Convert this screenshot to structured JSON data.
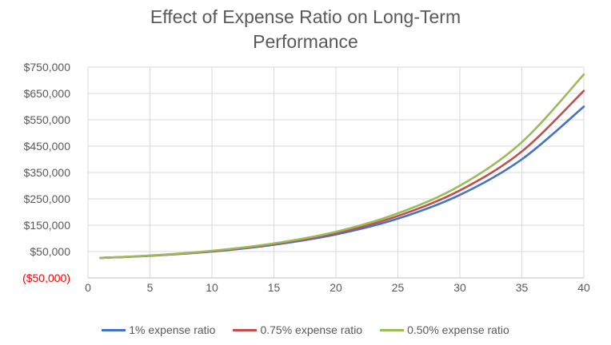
{
  "chart_data": {
    "type": "line",
    "title_lines": [
      "Effect of Expense Ratio on Long-Term",
      "Performance"
    ],
    "xlabel": "",
    "ylabel": "",
    "xlim": [
      0,
      40
    ],
    "ylim": [
      -50000,
      750000
    ],
    "x_ticks": [
      0,
      5,
      10,
      15,
      20,
      25,
      30,
      35,
      40
    ],
    "y_ticks": [
      {
        "value": -50000,
        "label": "($50,000)",
        "color": "#ff0000"
      },
      {
        "value": 50000,
        "label": "$50,000"
      },
      {
        "value": 150000,
        "label": "$150,000"
      },
      {
        "value": 250000,
        "label": "$250,000"
      },
      {
        "value": 350000,
        "label": "$350,000"
      },
      {
        "value": 450000,
        "label": "$450,000"
      },
      {
        "value": 550000,
        "label": "$550,000"
      },
      {
        "value": 650000,
        "label": "$650,000"
      },
      {
        "value": 750000,
        "label": "$750,000"
      }
    ],
    "grid": true,
    "legend_position": "bottom",
    "series": [
      {
        "name": "1% expense ratio",
        "color": "#4472c4",
        "x": [
          1,
          5,
          10,
          15,
          20,
          25,
          30,
          35,
          40
        ],
        "y": [
          26000,
          34000,
          50000,
          76000,
          115000,
          175000,
          265000,
          400000,
          600000
        ]
      },
      {
        "name": "0.75% expense ratio",
        "color": "#c0504d",
        "x": [
          1,
          5,
          10,
          15,
          20,
          25,
          30,
          35,
          40
        ],
        "y": [
          26000,
          34500,
          51500,
          78500,
          120000,
          185000,
          282000,
          430000,
          660000
        ]
      },
      {
        "name": "0.50% expense ratio",
        "color": "#9bbb59",
        "x": [
          1,
          5,
          10,
          15,
          20,
          25,
          30,
          35,
          40
        ],
        "y": [
          26000,
          35000,
          53000,
          81000,
          125000,
          195000,
          300000,
          465000,
          722000
        ]
      }
    ]
  }
}
